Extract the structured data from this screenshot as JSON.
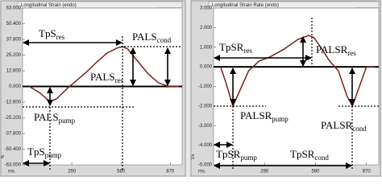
{
  "chart_data": [
    {
      "type": "line",
      "title": "Longitudinal Strain (endo)",
      "y_unit": "%",
      "x_label": "ms.",
      "color": "#7a2020",
      "x": [
        40,
        100,
        160,
        200,
        260,
        320,
        380,
        440,
        500,
        560,
        590,
        620,
        680,
        740,
        800,
        860,
        920
      ],
      "values": [
        0,
        -5,
        -12,
        -10,
        -2,
        5,
        12,
        20,
        27,
        31,
        32,
        30,
        20,
        10,
        3,
        0,
        0
      ],
      "xlim": [
        0,
        940
      ],
      "xticks": [
        290,
        580,
        870
      ],
      "ylim": [
        -63,
        63
      ],
      "yticks": [
        {
          "value": 63,
          "label": "63.000"
        },
        {
          "value": 50.4,
          "label": "50.400"
        },
        {
          "value": 37.8,
          "label": "37.800"
        },
        {
          "value": 25.2,
          "label": "25.200"
        },
        {
          "value": 12.6,
          "label": "12.600"
        },
        {
          "value": 0,
          "label": "0.000"
        },
        {
          "value": -12.6,
          "label": "-12.600"
        },
        {
          "value": -25.2,
          "label": "-25.200"
        },
        {
          "value": -37.8,
          "label": "-37.800"
        },
        {
          "value": -50.4,
          "label": "-50.400"
        },
        {
          "value": -63,
          "label": "-63.000"
        }
      ],
      "annotations": [
        {
          "text": "TpS",
          "sub": "res"
        },
        {
          "text": "PALS",
          "sub": "cond"
        },
        {
          "text": "PALS",
          "sub": "res"
        },
        {
          "text": "PALS",
          "sub": "pump"
        },
        {
          "text": "TpS",
          "sub": "pump"
        }
      ]
    },
    {
      "type": "line",
      "title": "Longitudinal Strain Rate (endo)",
      "y_unit": "1/s",
      "x_label": "ms.",
      "color": "#7a2020",
      "x": [
        40,
        70,
        110,
        150,
        200,
        260,
        320,
        400,
        480,
        540,
        570,
        610,
        660,
        710,
        760,
        790,
        830,
        870,
        920
      ],
      "values": [
        0,
        -0.8,
        -2,
        -1.2,
        -0.2,
        0.3,
        0.5,
        0.9,
        1.4,
        1.6,
        1.5,
        1.0,
        0.3,
        -0.2,
        -1.5,
        -2,
        -1.0,
        0,
        0
      ],
      "xlim": [
        0,
        940
      ],
      "xticks": [
        290,
        580,
        870
      ],
      "ylim": [
        -5,
        3
      ],
      "yticks": [
        {
          "value": 3,
          "label": "3.000"
        },
        {
          "value": 2,
          "label": "2.000"
        },
        {
          "value": 1,
          "label": "1.000"
        },
        {
          "value": 0,
          "label": "0.000"
        },
        {
          "value": -1,
          "label": "-1.000"
        },
        {
          "value": -2,
          "label": "-2.000"
        },
        {
          "value": -3,
          "label": "-3.000"
        },
        {
          "value": -4,
          "label": "-4.000"
        },
        {
          "value": -5,
          "label": "-5.000"
        }
      ],
      "annotations": [
        {
          "text": "TpSR",
          "sub": "res"
        },
        {
          "text": "PALSR",
          "sub": "res"
        },
        {
          "text": "PALSR",
          "sub": "pump"
        },
        {
          "text": "PALSR",
          "sub": "cond"
        },
        {
          "text": "TpSR",
          "sub": "pump"
        },
        {
          "text": "TpSR",
          "sub": "cond"
        }
      ]
    }
  ]
}
